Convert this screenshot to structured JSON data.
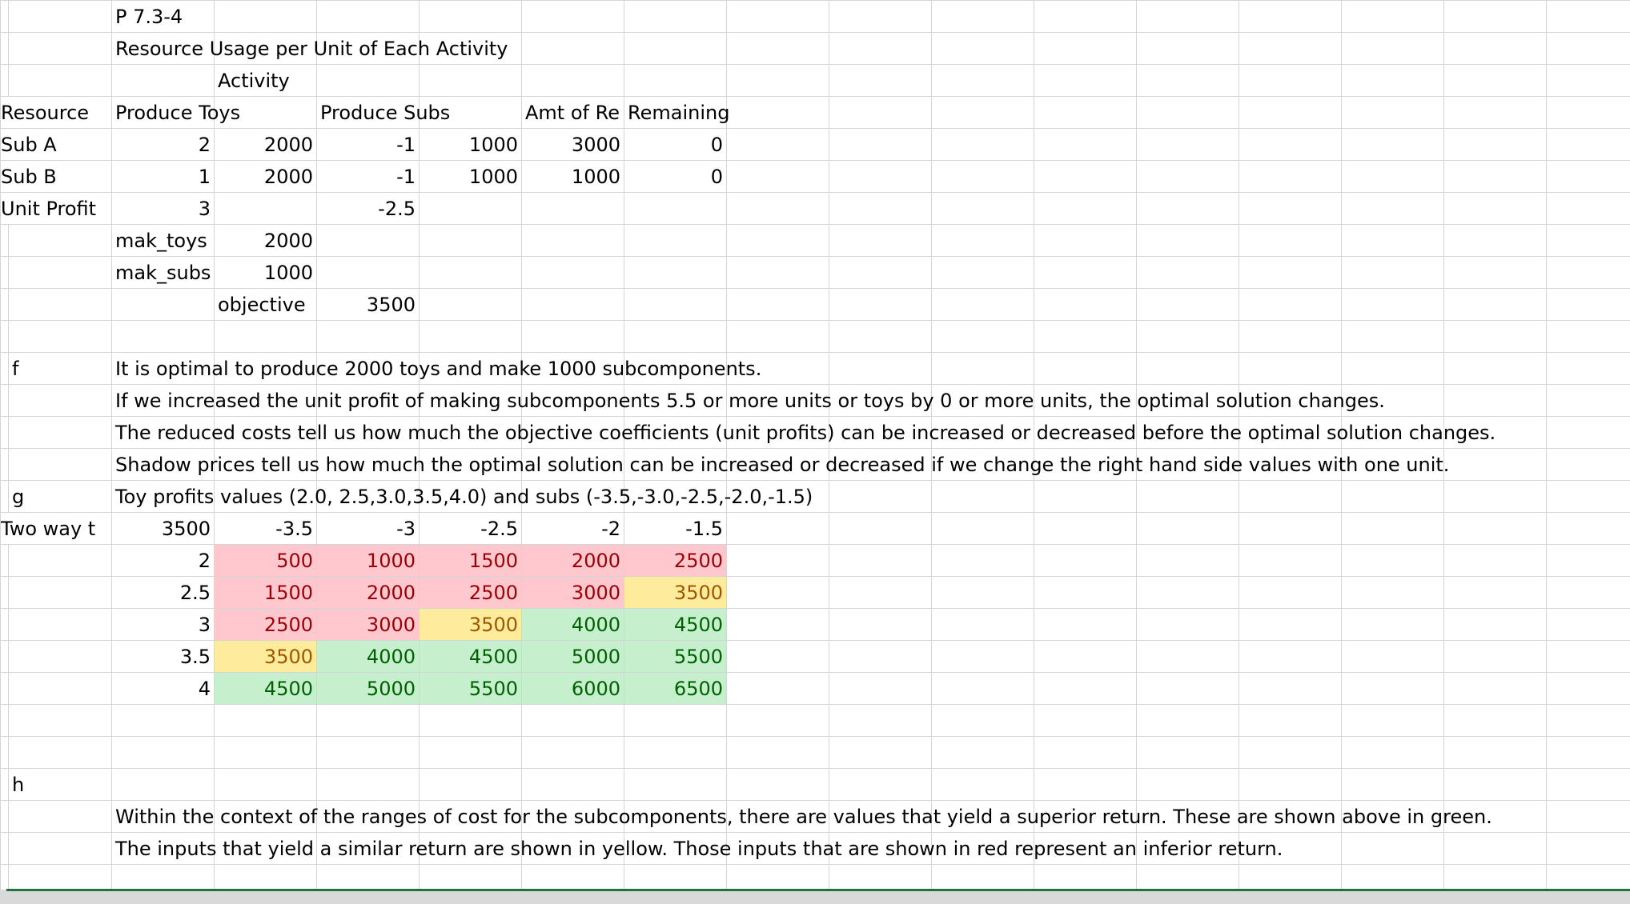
{
  "header": {
    "problem_id": "P 7.3-4",
    "table_title": "Resource Usage per Unit of Each Activity",
    "activity": "Activity"
  },
  "columns": {
    "resource": "Resource",
    "produce_toys": "Produce Toys",
    "produce_subs": "Produce Subs",
    "amt_of_resource": "Amt of Re",
    "remaining": "Remaining"
  },
  "resources": [
    {
      "name": "Sub A",
      "toys": "2",
      "toys_used": "2000",
      "subs": "-1",
      "subs_used": "1000",
      "amount": "3000",
      "remaining": "0"
    },
    {
      "name": "Sub B",
      "toys": "1",
      "toys_used": "2000",
      "subs": "-1",
      "subs_used": "1000",
      "amount": "1000",
      "remaining": "0"
    }
  ],
  "unit_profit": {
    "label": "Unit Profit",
    "toys": "3",
    "subs": "-2.5"
  },
  "decisions": {
    "make_toys_label": "mak_toys",
    "make_toys_value": "2000",
    "make_subs_label": "mak_subs",
    "make_subs_value": "1000",
    "objective_label": "objective",
    "objective_value": "3500"
  },
  "part_f": {
    "label": "f",
    "lines": [
      "It is optimal to produce 2000 toys and make 1000 subcomponents.",
      "If we increased the unit profit of making subcomponents 5.5 or more units or toys by 0 or more units, the optimal solution changes.",
      "The reduced costs tell us how much the objective coefficients (unit profits) can be increased or decreased before the optimal solution changes.",
      "Shadow prices tell us how much the optimal solution can be increased or decreased if we change the right hand side values with one unit."
    ]
  },
  "part_g": {
    "label": "g",
    "description": "Toy profits values (2.0, 2.5,3.0,3.5,4.0) and subs (-3.5,-3.0,-2.5,-2.0,-1.5)",
    "two_way_label": "Two way t",
    "corner": "3500",
    "sub_values": [
      "-3.5",
      "-3",
      "-2.5",
      "-2",
      "-1.5"
    ],
    "rows": [
      {
        "toy": "2",
        "values": [
          "500",
          "1000",
          "1500",
          "2000",
          "2500"
        ],
        "fills": [
          "red",
          "red",
          "red",
          "red",
          "red"
        ]
      },
      {
        "toy": "2.5",
        "values": [
          "1500",
          "2000",
          "2500",
          "3000",
          "3500"
        ],
        "fills": [
          "red",
          "red",
          "red",
          "red",
          "yellow"
        ]
      },
      {
        "toy": "3",
        "values": [
          "2500",
          "3000",
          "3500",
          "4000",
          "4500"
        ],
        "fills": [
          "red",
          "red",
          "yellow",
          "green",
          "green"
        ]
      },
      {
        "toy": "3.5",
        "values": [
          "3500",
          "4000",
          "4500",
          "5000",
          "5500"
        ],
        "fills": [
          "yellow",
          "green",
          "green",
          "green",
          "green"
        ]
      },
      {
        "toy": "4",
        "values": [
          "4500",
          "5000",
          "5500",
          "6000",
          "6500"
        ],
        "fills": [
          "green",
          "green",
          "green",
          "green",
          "green"
        ]
      }
    ],
    "colors": {
      "red_fill": "#ffc7ce",
      "red_text": "#9c0006",
      "yellow_fill": "#ffeb9c",
      "yellow_text": "#9c5700",
      "green_fill": "#c6efce",
      "green_text": "#006100"
    }
  },
  "part_h": {
    "label": "h",
    "lines": [
      "Within the context of the ranges of cost for the subcomponents, there are values that yield a superior return.  These are shown above in green.",
      "The inputs that yield a similar return are shown in yellow.  Those inputs that are shown in red represent an inferior return."
    ]
  }
}
